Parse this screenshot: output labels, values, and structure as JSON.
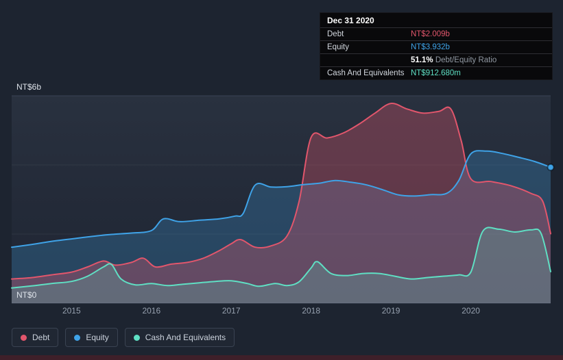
{
  "theme": {
    "background": "#1d2430",
    "panel": "#232a38",
    "axis_text": "#97a1af",
    "tooltip_background": "#09090b"
  },
  "tooltip": {
    "date": "Dec 31 2020",
    "debt": {
      "label": "Debt",
      "value": "NT$2.009b"
    },
    "equity": {
      "label": "Equity",
      "value": "NT$3.932b"
    },
    "ratio": {
      "value": "51.1%",
      "label": "Debt/Equity Ratio"
    },
    "cash": {
      "label": "Cash And Equivalents",
      "value": "NT$912.680m"
    }
  },
  "chart_data": {
    "type": "area",
    "x_range": [
      2014.25,
      2021.0
    ],
    "x_ticks": [
      2015,
      2016,
      2017,
      2018,
      2019,
      2020
    ],
    "y_axis": {
      "min": 0,
      "max": 6,
      "top_label": "NT$6b",
      "bottom_label": "NT$0",
      "unit": "NT$ billions"
    },
    "gridlines": [
      2,
      4
    ],
    "legend_position": "bottom-left",
    "series": [
      {
        "name": "Debt",
        "color": "#e2566c",
        "fill_opacity": 0.32,
        "points": [
          [
            2014.25,
            0.7
          ],
          [
            2014.5,
            0.74
          ],
          [
            2014.75,
            0.82
          ],
          [
            2015.0,
            0.9
          ],
          [
            2015.2,
            1.05
          ],
          [
            2015.4,
            1.22
          ],
          [
            2015.55,
            1.1
          ],
          [
            2015.75,
            1.18
          ],
          [
            2015.9,
            1.3
          ],
          [
            2016.05,
            1.05
          ],
          [
            2016.25,
            1.13
          ],
          [
            2016.45,
            1.18
          ],
          [
            2016.65,
            1.3
          ],
          [
            2016.85,
            1.52
          ],
          [
            2017.0,
            1.72
          ],
          [
            2017.12,
            1.84
          ],
          [
            2017.3,
            1.62
          ],
          [
            2017.5,
            1.66
          ],
          [
            2017.7,
            1.95
          ],
          [
            2017.85,
            2.95
          ],
          [
            2018.0,
            4.8
          ],
          [
            2018.2,
            4.78
          ],
          [
            2018.4,
            4.92
          ],
          [
            2018.6,
            5.18
          ],
          [
            2018.8,
            5.5
          ],
          [
            2019.0,
            5.78
          ],
          [
            2019.2,
            5.62
          ],
          [
            2019.4,
            5.5
          ],
          [
            2019.6,
            5.55
          ],
          [
            2019.75,
            5.62
          ],
          [
            2019.88,
            4.7
          ],
          [
            2020.0,
            3.6
          ],
          [
            2020.25,
            3.52
          ],
          [
            2020.5,
            3.4
          ],
          [
            2020.75,
            3.18
          ],
          [
            2020.9,
            2.95
          ],
          [
            2021.0,
            2.009
          ]
        ]
      },
      {
        "name": "Equity",
        "color": "#3fa3e8",
        "fill_opacity": 0.25,
        "points": [
          [
            2014.25,
            1.62
          ],
          [
            2014.5,
            1.7
          ],
          [
            2014.75,
            1.79
          ],
          [
            2015.0,
            1.86
          ],
          [
            2015.25,
            1.93
          ],
          [
            2015.5,
            1.99
          ],
          [
            2015.75,
            2.03
          ],
          [
            2016.0,
            2.1
          ],
          [
            2016.15,
            2.44
          ],
          [
            2016.35,
            2.36
          ],
          [
            2016.6,
            2.4
          ],
          [
            2016.85,
            2.44
          ],
          [
            2017.05,
            2.52
          ],
          [
            2017.15,
            2.6
          ],
          [
            2017.3,
            3.42
          ],
          [
            2017.5,
            3.36
          ],
          [
            2017.7,
            3.37
          ],
          [
            2017.9,
            3.43
          ],
          [
            2018.1,
            3.47
          ],
          [
            2018.3,
            3.55
          ],
          [
            2018.5,
            3.5
          ],
          [
            2018.7,
            3.42
          ],
          [
            2018.9,
            3.28
          ],
          [
            2019.1,
            3.13
          ],
          [
            2019.3,
            3.1
          ],
          [
            2019.5,
            3.14
          ],
          [
            2019.7,
            3.18
          ],
          [
            2019.85,
            3.55
          ],
          [
            2020.0,
            4.32
          ],
          [
            2020.2,
            4.4
          ],
          [
            2020.4,
            4.33
          ],
          [
            2020.6,
            4.22
          ],
          [
            2020.8,
            4.1
          ],
          [
            2021.0,
            3.932
          ]
        ]
      },
      {
        "name": "Cash And Equivalents",
        "color": "#5fe0c4",
        "fill_opacity": 0.22,
        "points": [
          [
            2014.25,
            0.44
          ],
          [
            2014.5,
            0.5
          ],
          [
            2014.75,
            0.57
          ],
          [
            2015.0,
            0.63
          ],
          [
            2015.2,
            0.78
          ],
          [
            2015.4,
            1.05
          ],
          [
            2015.5,
            1.12
          ],
          [
            2015.62,
            0.7
          ],
          [
            2015.8,
            0.53
          ],
          [
            2016.0,
            0.57
          ],
          [
            2016.2,
            0.51
          ],
          [
            2016.4,
            0.55
          ],
          [
            2016.6,
            0.59
          ],
          [
            2016.8,
            0.63
          ],
          [
            2017.0,
            0.65
          ],
          [
            2017.2,
            0.57
          ],
          [
            2017.35,
            0.49
          ],
          [
            2017.55,
            0.57
          ],
          [
            2017.7,
            0.51
          ],
          [
            2017.85,
            0.62
          ],
          [
            2018.0,
            1.02
          ],
          [
            2018.08,
            1.2
          ],
          [
            2018.25,
            0.86
          ],
          [
            2018.45,
            0.8
          ],
          [
            2018.65,
            0.86
          ],
          [
            2018.85,
            0.86
          ],
          [
            2019.05,
            0.78
          ],
          [
            2019.25,
            0.7
          ],
          [
            2019.45,
            0.74
          ],
          [
            2019.65,
            0.78
          ],
          [
            2019.85,
            0.82
          ],
          [
            2020.0,
            0.9
          ],
          [
            2020.15,
            2.08
          ],
          [
            2020.35,
            2.14
          ],
          [
            2020.55,
            2.06
          ],
          [
            2020.75,
            2.12
          ],
          [
            2020.88,
            2.02
          ],
          [
            2021.0,
            0.913
          ]
        ]
      }
    ],
    "end_marker": {
      "series_index": 1
    }
  }
}
